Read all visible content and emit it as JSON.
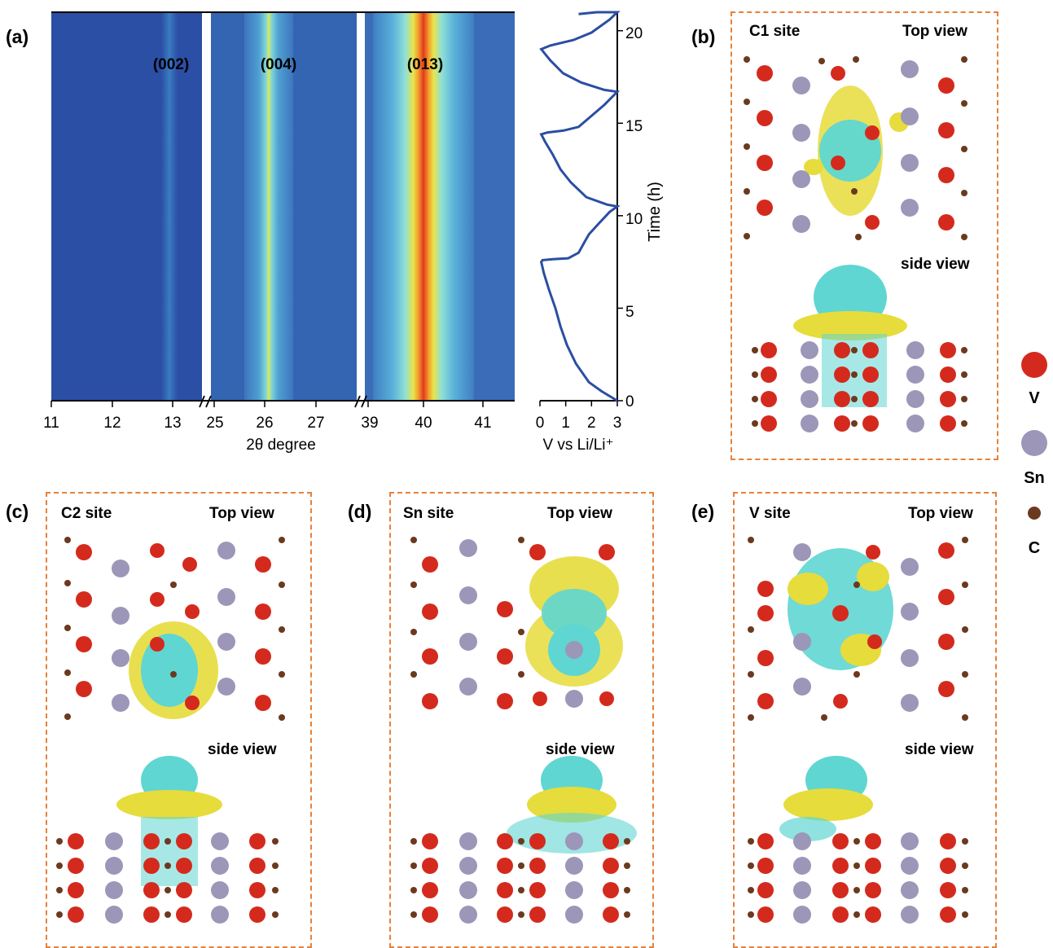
{
  "panel_a": {
    "label": "(a)",
    "xlabel": "2θ degree",
    "segments": [
      {
        "ticks": [
          "11",
          "12",
          "13"
        ],
        "peak": "(002)"
      },
      {
        "ticks": [
          "25",
          "26",
          "27"
        ],
        "peak": "(004)"
      },
      {
        "ticks": [
          "39",
          "40",
          "41"
        ],
        "peak": "(013)"
      }
    ],
    "voltage_xlabel": "V vs Li/Li⁺",
    "voltage_ticks": [
      "0",
      "1",
      "2",
      "3"
    ],
    "time_label": "Time (h)",
    "time_ticks": [
      "0",
      "5",
      "10",
      "15",
      "20"
    ]
  },
  "chart_data": {
    "type": "line",
    "title": "",
    "xlabel": "V vs Li/Li⁺",
    "ylabel": "Time (h)",
    "xlim": [
      0,
      3
    ],
    "ylim": [
      0,
      21
    ],
    "series": [
      {
        "values": [
          [
            3.0,
            0
          ],
          [
            2.4,
            0.5
          ],
          [
            1.9,
            1
          ],
          [
            1.4,
            2
          ],
          [
            1.05,
            3
          ],
          [
            0.8,
            4
          ],
          [
            0.6,
            5
          ],
          [
            0.35,
            6
          ],
          [
            0.15,
            6.9
          ],
          [
            0.05,
            7.5
          ],
          [
            0.1,
            7.6
          ],
          [
            0.5,
            7.65
          ],
          [
            1.1,
            7.7
          ],
          [
            1.5,
            8.0
          ],
          [
            1.7,
            8.5
          ],
          [
            1.9,
            9.0
          ],
          [
            2.3,
            9.6
          ],
          [
            2.7,
            10.2
          ],
          [
            3.0,
            10.5
          ],
          [
            2.6,
            10.6
          ],
          [
            1.8,
            11
          ],
          [
            1.2,
            11.8
          ],
          [
            0.8,
            12.5
          ],
          [
            0.5,
            13.3
          ],
          [
            0.2,
            14.0
          ],
          [
            0.05,
            14.4
          ],
          [
            0.3,
            14.5
          ],
          [
            0.9,
            14.6
          ],
          [
            1.5,
            14.8
          ],
          [
            2.0,
            15.4
          ],
          [
            2.5,
            16.0
          ],
          [
            3.0,
            16.7
          ],
          [
            2.5,
            16.8
          ],
          [
            1.6,
            17.2
          ],
          [
            0.9,
            17.7
          ],
          [
            0.4,
            18.4
          ],
          [
            0.05,
            19.0
          ],
          [
            0.4,
            19.2
          ],
          [
            1.3,
            19.5
          ],
          [
            2.0,
            19.9
          ],
          [
            2.7,
            20.6
          ],
          [
            3.0,
            21.0
          ],
          [
            2.2,
            21.0
          ],
          [
            1.5,
            20.9
          ]
        ]
      }
    ]
  },
  "panels": [
    {
      "label": "(b)",
      "site": "C1 site",
      "top": "Top view",
      "side": "side view"
    },
    {
      "label": "(c)",
      "site": "C2 site",
      "top": "Top view",
      "side": "side view"
    },
    {
      "label": "(d)",
      "site": "Sn site",
      "top": "Top view",
      "side": "side view"
    },
    {
      "label": "(e)",
      "site": "V site",
      "top": "Top view",
      "side": "side view"
    }
  ],
  "legend": [
    {
      "label": "V",
      "color": "#d42a1e"
    },
    {
      "label": "Sn",
      "color": "#9c96b8"
    },
    {
      "label": "C",
      "color": "#6b3a1e"
    }
  ],
  "colors": {
    "dashed_border": "#e8803a",
    "isosurface_positive": "#e6dc3c",
    "isosurface_negative": "#5fd6d2",
    "heatmap_base": "#2b4fa5",
    "curve": "#2b4ea2"
  }
}
